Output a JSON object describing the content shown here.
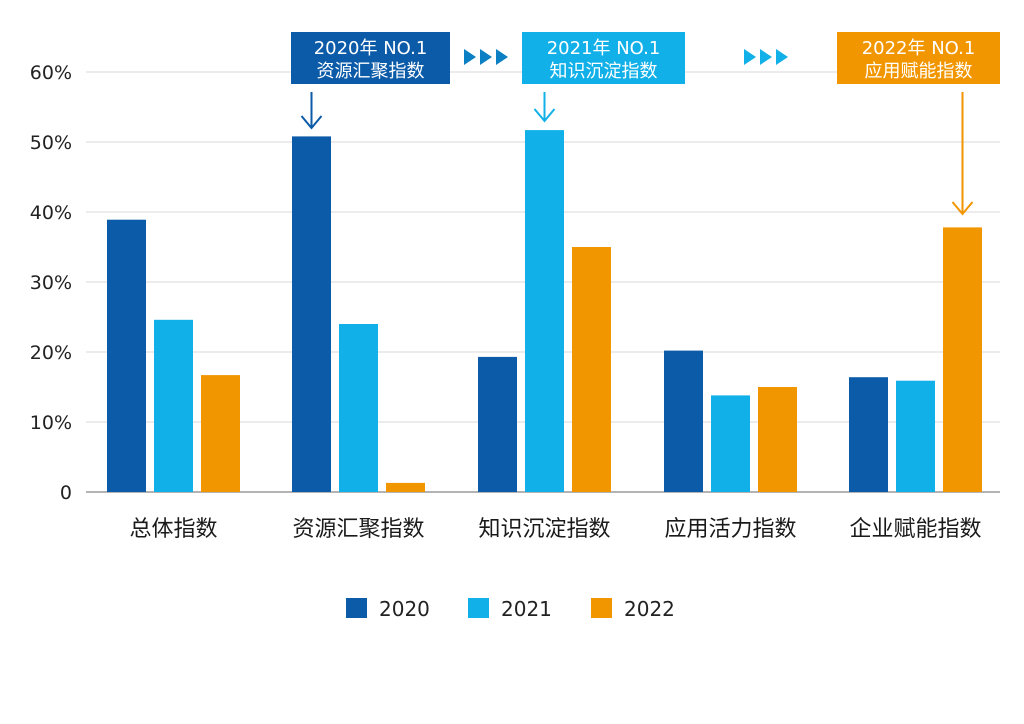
{
  "chart_data": {
    "type": "bar",
    "categories": [
      "总体指数",
      "资源汇聚指数",
      "知识沉淀指数",
      "应用活力指数",
      "企业赋能指数"
    ],
    "series": [
      {
        "name": "2020",
        "color": "#0b5ba8",
        "values": [
          38.9,
          50.8,
          19.3,
          20.2,
          16.4
        ]
      },
      {
        "name": "2021",
        "color": "#12b0e8",
        "values": [
          24.6,
          24.0,
          51.7,
          13.8,
          15.9
        ]
      },
      {
        "name": "2022",
        "color": "#f29600",
        "values": [
          16.7,
          1.3,
          35.0,
          15.0,
          37.8
        ]
      }
    ],
    "yticks": [
      "0",
      "10%",
      "20%",
      "30%",
      "40%",
      "50%",
      "60%"
    ],
    "ylim": [
      0,
      60
    ],
    "grid": true,
    "legend": "bottom-center",
    "callouts": [
      {
        "line1": "2020年  NO.1",
        "line2": "资源汇聚指数",
        "color": "#0b5ba8",
        "series": 0,
        "category": 1
      },
      {
        "line1": "2021年  NO.1",
        "line2": "知识沉淀指数",
        "color": "#12b0e8",
        "series": 1,
        "category": 2
      },
      {
        "line1": "2022年  NO.1",
        "line2": "应用赋能指数",
        "color": "#f29600",
        "series": 2,
        "category": 4
      }
    ],
    "chevron_colors": [
      "#0b7fc4",
      "#12b0e8"
    ]
  }
}
